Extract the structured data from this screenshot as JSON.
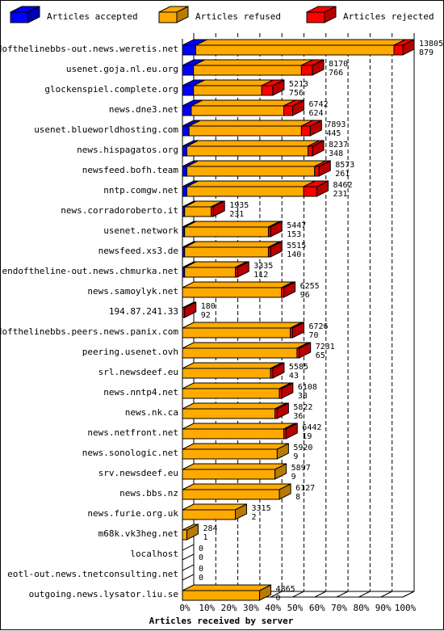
{
  "chart_data": {
    "type": "bar",
    "stacked": true,
    "orientation": "horizontal",
    "style": "3d",
    "xlabel": "Articles received by server",
    "ylabel": "",
    "xlim_percent": [
      0,
      100
    ],
    "x_ticks": [
      "0%",
      "10%",
      "20%",
      "30%",
      "40%",
      "50%",
      "60%",
      "70%",
      "80%",
      "90%",
      "100%"
    ],
    "legend_position": "top",
    "series": [
      {
        "name": "Articles accepted",
        "color": "#0000ff"
      },
      {
        "name": "Articles refused",
        "color": "#ffaa00"
      },
      {
        "name": "Articles rejected",
        "color": "#ff0000"
      }
    ],
    "rows": [
      {
        "server": "endofthelinebbs-out.news.weretis.net",
        "total_label": "13805",
        "rejected_label": "879",
        "accepted_pct": 6,
        "refused_pct": 90,
        "rejected_pct": 4
      },
      {
        "server": "usenet.goja.nl.eu.org",
        "total_label": "8170",
        "rejected_label": "766",
        "accepted_pct": 5,
        "refused_pct": 49,
        "rejected_pct": 5
      },
      {
        "server": "glockenspiel.complete.org",
        "total_label": "5213",
        "rejected_label": "756",
        "accepted_pct": 5,
        "refused_pct": 31,
        "rejected_pct": 5
      },
      {
        "server": "news.dne3.net",
        "total_label": "6742",
        "rejected_label": "624",
        "accepted_pct": 4,
        "refused_pct": 42,
        "rejected_pct": 4
      },
      {
        "server": "usenet.blueworldhosting.com",
        "total_label": "7893",
        "rejected_label": "445",
        "accepted_pct": 3,
        "refused_pct": 51,
        "rejected_pct": 4
      },
      {
        "server": "news.hispagatos.org",
        "total_label": "8237",
        "rejected_label": "348",
        "accepted_pct": 2,
        "refused_pct": 55,
        "rejected_pct": 2
      },
      {
        "server": "newsfeed.bofh.team",
        "total_label": "8573",
        "rejected_label": "261",
        "accepted_pct": 2,
        "refused_pct": 58,
        "rejected_pct": 2
      },
      {
        "server": "nntp.comgw.net",
        "total_label": "8462",
        "rejected_label": "231",
        "accepted_pct": 2,
        "refused_pct": 53,
        "rejected_pct": 6
      },
      {
        "server": "news.corradoroberto.it",
        "total_label": "1935",
        "rejected_label": "231",
        "accepted_pct": 1,
        "refused_pct": 12,
        "rejected_pct": 1
      },
      {
        "server": "usenet.network",
        "total_label": "5447",
        "rejected_label": "153",
        "accepted_pct": 1,
        "refused_pct": 38,
        "rejected_pct": 1
      },
      {
        "server": "newsfeed.xs3.de",
        "total_label": "5515",
        "rejected_label": "140",
        "accepted_pct": 1,
        "refused_pct": 38,
        "rejected_pct": 1
      },
      {
        "server": "endoftheline-out.news.chmurka.net",
        "total_label": "3335",
        "rejected_label": "112",
        "accepted_pct": 1,
        "refused_pct": 23,
        "rejected_pct": 1
      },
      {
        "server": "news.samoylyk.net",
        "total_label": "6255",
        "rejected_label": "96",
        "accepted_pct": 0,
        "refused_pct": 45,
        "rejected_pct": 1
      },
      {
        "server": "194.87.241.33",
        "total_label": "180",
        "rejected_label": "92",
        "accepted_pct": 0,
        "refused_pct": 0,
        "rejected_pct": 1
      },
      {
        "server": "endofthelinebbs.peers.news.panix.com",
        "total_label": "6726",
        "rejected_label": "70",
        "accepted_pct": 0,
        "refused_pct": 49,
        "rejected_pct": 1
      },
      {
        "server": "peering.usenet.ovh",
        "total_label": "7231",
        "rejected_label": "65",
        "accepted_pct": 0,
        "refused_pct": 52,
        "rejected_pct": 1
      },
      {
        "server": "srl.newsdeef.eu",
        "total_label": "5585",
        "rejected_label": "43",
        "accepted_pct": 0,
        "refused_pct": 40,
        "rejected_pct": 1
      },
      {
        "server": "news.nntp4.net",
        "total_label": "6108",
        "rejected_label": "38",
        "accepted_pct": 0,
        "refused_pct": 44,
        "rejected_pct": 1
      },
      {
        "server": "news.nk.ca",
        "total_label": "5822",
        "rejected_label": "36",
        "accepted_pct": 0,
        "refused_pct": 42,
        "rejected_pct": 1
      },
      {
        "server": "news.netfront.net",
        "total_label": "6442",
        "rejected_label": "19",
        "accepted_pct": 0,
        "refused_pct": 46,
        "rejected_pct": 1
      },
      {
        "server": "news.sonologic.net",
        "total_label": "5920",
        "rejected_label": "9",
        "accepted_pct": 0,
        "refused_pct": 43,
        "rejected_pct": 0
      },
      {
        "server": "srv.newsdeef.eu",
        "total_label": "5897",
        "rejected_label": "9",
        "accepted_pct": 0,
        "refused_pct": 42,
        "rejected_pct": 0
      },
      {
        "server": "news.bbs.nz",
        "total_label": "6127",
        "rejected_label": "8",
        "accepted_pct": 0,
        "refused_pct": 44,
        "rejected_pct": 0
      },
      {
        "server": "news.furie.org.uk",
        "total_label": "3315",
        "rejected_label": "2",
        "accepted_pct": 0,
        "refused_pct": 24,
        "rejected_pct": 0
      },
      {
        "server": "m68k.vk3heg.net",
        "total_label": "284",
        "rejected_label": "1",
        "accepted_pct": 0,
        "refused_pct": 2,
        "rejected_pct": 0
      },
      {
        "server": "localhost",
        "total_label": "0",
        "rejected_label": "0",
        "accepted_pct": 0,
        "refused_pct": 0,
        "rejected_pct": 0
      },
      {
        "server": "eotl-out.news.tnetconsulting.net",
        "total_label": "0",
        "rejected_label": "0",
        "accepted_pct": 0,
        "refused_pct": 0,
        "rejected_pct": 0
      },
      {
        "server": "outgoing.news.lysator.liu.se",
        "total_label": "4865",
        "rejected_label": "0",
        "accepted_pct": 0,
        "refused_pct": 35,
        "rejected_pct": 0
      }
    ]
  }
}
